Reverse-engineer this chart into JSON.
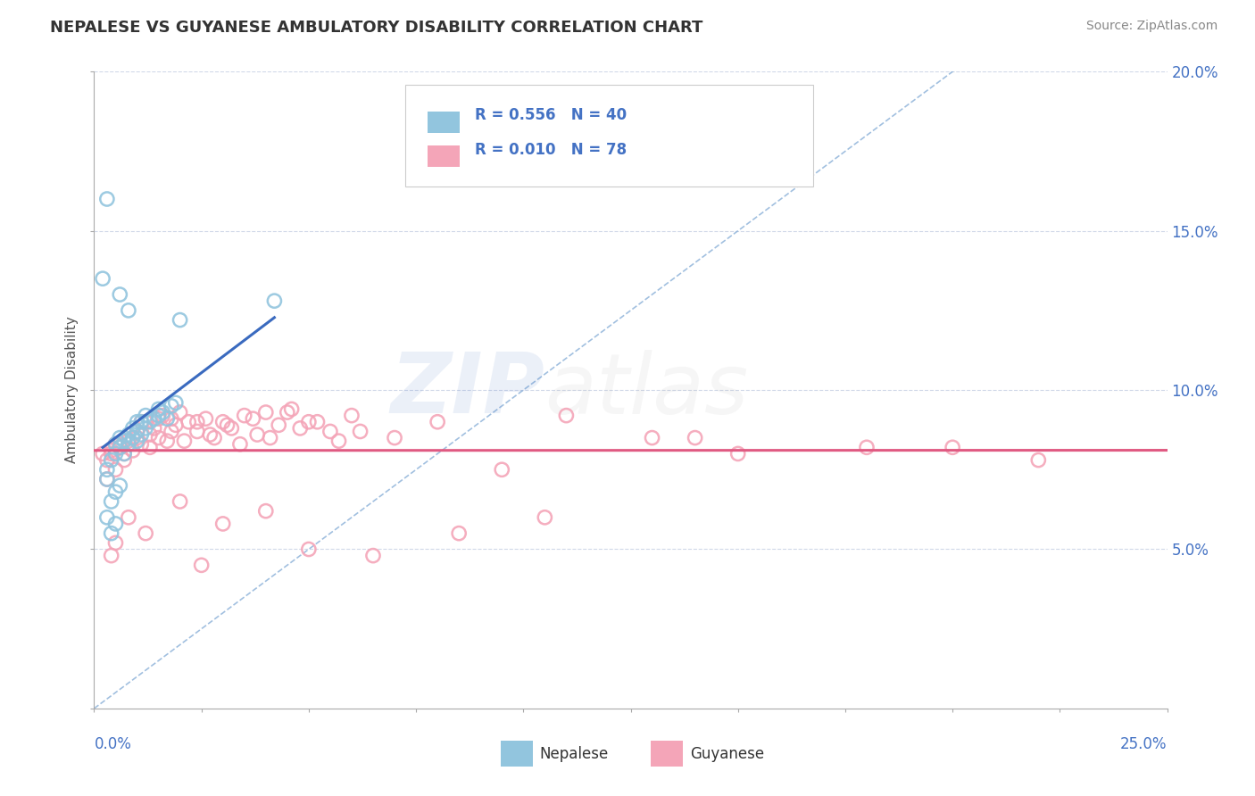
{
  "title": "NEPALESE VS GUYANESE AMBULATORY DISABILITY CORRELATION CHART",
  "source": "Source: ZipAtlas.com",
  "ylabel": "Ambulatory Disability",
  "R_nepalese": 0.556,
  "N_nepalese": 40,
  "R_guyanese": 0.01,
  "N_guyanese": 78,
  "nepalese_color": "#92c5de",
  "guyanese_color": "#f4a5b8",
  "nepalese_line_color": "#3a6abf",
  "guyanese_line_color": "#e05a82",
  "ref_line_color": "#8ab0d8",
  "grid_color": "#d0d8e8",
  "nepalese_x": [
    0.3,
    0.4,
    0.5,
    0.5,
    0.6,
    0.6,
    0.7,
    0.7,
    0.8,
    0.8,
    0.9,
    0.9,
    1.0,
    1.0,
    1.0,
    1.1,
    1.1,
    1.2,
    1.2,
    1.3,
    1.4,
    1.5,
    1.5,
    1.6,
    1.7,
    1.8,
    1.9,
    2.0,
    0.3,
    0.4,
    0.5,
    0.6,
    0.8,
    0.4,
    0.3,
    0.5,
    0.6,
    0.2,
    0.3,
    4.2
  ],
  "nepalese_y": [
    7.5,
    7.8,
    8.0,
    8.3,
    8.2,
    8.5,
    8.0,
    8.4,
    8.3,
    8.6,
    8.5,
    8.8,
    8.4,
    8.7,
    9.0,
    8.6,
    9.0,
    8.8,
    9.2,
    9.0,
    9.1,
    9.2,
    9.4,
    9.3,
    9.1,
    9.5,
    9.6,
    12.2,
    7.2,
    6.5,
    6.8,
    13.0,
    12.5,
    5.5,
    6.0,
    5.8,
    7.0,
    13.5,
    16.0,
    12.8
  ],
  "guyanese_x": [
    0.2,
    0.3,
    0.4,
    0.5,
    0.5,
    0.6,
    0.7,
    0.8,
    0.9,
    1.0,
    1.0,
    1.1,
    1.2,
    1.3,
    1.4,
    1.5,
    1.6,
    1.7,
    1.8,
    1.9,
    2.0,
    2.2,
    2.4,
    2.6,
    2.8,
    3.0,
    3.2,
    3.5,
    3.8,
    4.0,
    4.3,
    4.6,
    5.0,
    5.5,
    6.0,
    7.0,
    8.0,
    9.5,
    11.0,
    13.0,
    15.0,
    18.0,
    22.0,
    0.3,
    0.4,
    0.6,
    0.7,
    0.9,
    1.1,
    1.3,
    1.5,
    1.8,
    2.1,
    2.4,
    2.7,
    3.1,
    3.4,
    3.7,
    4.1,
    4.5,
    4.8,
    5.2,
    5.7,
    6.2,
    0.4,
    0.5,
    0.8,
    1.2,
    2.0,
    2.5,
    3.0,
    4.0,
    5.0,
    6.5,
    8.5,
    10.5,
    14.0,
    20.0
  ],
  "guyanese_y": [
    8.0,
    7.8,
    8.1,
    8.3,
    7.5,
    8.2,
    8.0,
    8.4,
    8.1,
    8.5,
    8.7,
    8.3,
    9.0,
    8.6,
    8.8,
    8.5,
    9.2,
    8.4,
    9.1,
    8.9,
    9.3,
    9.0,
    8.7,
    9.1,
    8.5,
    9.0,
    8.8,
    9.2,
    8.6,
    9.3,
    8.9,
    9.4,
    9.0,
    8.7,
    9.2,
    8.5,
    9.0,
    7.5,
    9.2,
    8.5,
    8.0,
    8.2,
    7.8,
    7.2,
    8.0,
    8.3,
    7.8,
    8.5,
    9.0,
    8.2,
    9.1,
    8.7,
    8.4,
    9.0,
    8.6,
    8.9,
    8.3,
    9.1,
    8.5,
    9.3,
    8.8,
    9.0,
    8.4,
    8.7,
    4.8,
    5.2,
    6.0,
    5.5,
    6.5,
    4.5,
    5.8,
    6.2,
    5.0,
    4.8,
    5.5,
    6.0,
    8.5,
    8.2
  ]
}
